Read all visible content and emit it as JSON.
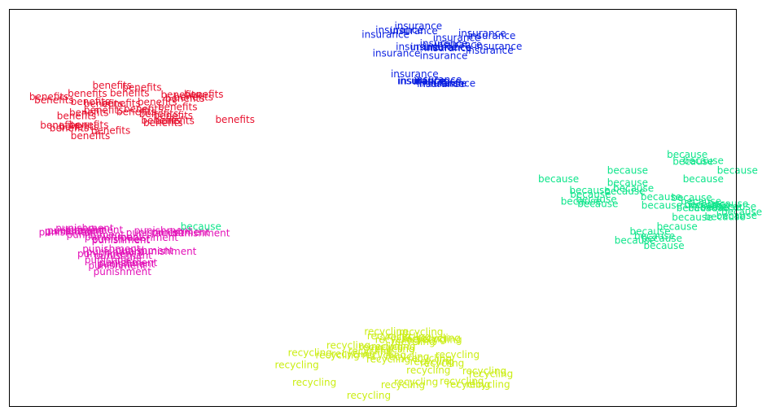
{
  "chart_data": {
    "type": "scatter",
    "title": "",
    "xlabel": "",
    "ylabel": "",
    "grid": false,
    "axes_ticks": false,
    "xlim": [
      0,
      1000
    ],
    "ylim": [
      0,
      1000
    ],
    "series": [
      {
        "name": "insurance",
        "color": "#0a1fe0",
        "points": [
          [
            563,
            957
          ],
          [
            557,
            945
          ],
          [
            518,
            935
          ],
          [
            537,
            947
          ],
          [
            651,
            939
          ],
          [
            664,
            932
          ],
          [
            616,
            927
          ],
          [
            585,
            904
          ],
          [
            565,
            905
          ],
          [
            533,
            888
          ],
          [
            618,
            910
          ],
          [
            598,
            913
          ],
          [
            604,
            902
          ],
          [
            603,
            904
          ],
          [
            661,
            895
          ],
          [
            598,
            882
          ],
          [
            558,
            836
          ],
          [
            589,
            818
          ],
          [
            568,
            819
          ],
          [
            597,
            812
          ],
          [
            590,
            822
          ],
          [
            567,
            819
          ],
          [
            609,
            812
          ],
          [
            594,
            811
          ],
          [
            673,
            906
          ]
        ]
      },
      {
        "name": "benefits",
        "color": "#e8122f",
        "points": [
          [
            55,
            779
          ],
          [
            62,
            771
          ],
          [
            108,
            787
          ],
          [
            166,
            788
          ],
          [
            142,
            807
          ],
          [
            183,
            802
          ],
          [
            236,
            784
          ],
          [
            254,
            778
          ],
          [
            268,
            785
          ],
          [
            232,
            753
          ],
          [
            204,
            765
          ],
          [
            130,
            761
          ],
          [
            154,
            762
          ],
          [
            112,
            766
          ],
          [
            242,
            775
          ],
          [
            130,
            745
          ],
          [
            175,
            741
          ],
          [
            110,
            739
          ],
          [
            93,
            731
          ],
          [
            110,
            708
          ],
          [
            96,
            703
          ],
          [
            70,
            707
          ],
          [
            83,
            700
          ],
          [
            212,
            713
          ],
          [
            226,
            732
          ],
          [
            185,
            748
          ],
          [
            206,
            736
          ],
          [
            209,
            719
          ],
          [
            228,
            718
          ],
          [
            311,
            721
          ],
          [
            112,
            680
          ],
          [
            140,
            694
          ]
        ]
      },
      {
        "name": "punishment",
        "color": "#e312b8",
        "points": [
          [
            104,
            448
          ],
          [
            93,
            442
          ],
          [
            89,
            441
          ],
          [
            81,
            438
          ],
          [
            117,
            444
          ],
          [
            119,
            431
          ],
          [
            144,
            425
          ],
          [
            154,
            418
          ],
          [
            193,
            424
          ],
          [
            154,
            420
          ],
          [
            212,
            442
          ],
          [
            201,
            436
          ],
          [
            236,
            438
          ],
          [
            264,
            435
          ],
          [
            141,
            395
          ],
          [
            134,
            383
          ],
          [
            144,
            368
          ],
          [
            157,
            379
          ],
          [
            146,
            388
          ],
          [
            186,
            391
          ],
          [
            218,
            389
          ],
          [
            161,
            358
          ],
          [
            149,
            353
          ],
          [
            156,
            338
          ],
          [
            164,
            361
          ]
        ]
      },
      {
        "name": "because",
        "color": "#0fe58b",
        "points": [
          [
            264,
            452
          ],
          [
            933,
            633
          ],
          [
            941,
            616
          ],
          [
            955,
            618
          ],
          [
            1002,
            593
          ],
          [
            955,
            572
          ],
          [
            851,
            593
          ],
          [
            756,
            572
          ],
          [
            847,
            541
          ],
          [
            799,
            543
          ],
          [
            851,
            562
          ],
          [
            859,
            548
          ],
          [
            897,
            527
          ],
          [
            939,
            525
          ],
          [
            800,
            533
          ],
          [
            808,
            521
          ],
          [
            810,
            509
          ],
          [
            787,
            515
          ],
          [
            898,
            505
          ],
          [
            952,
            515
          ],
          [
            946,
            499
          ],
          [
            963,
            506
          ],
          [
            989,
            509
          ],
          [
            962,
            499
          ],
          [
            979,
            501
          ],
          [
            1000,
            502
          ],
          [
            1008,
            489
          ],
          [
            985,
            476
          ],
          [
            1001,
            479
          ],
          [
            940,
            475
          ],
          [
            919,
            452
          ],
          [
            882,
            440
          ],
          [
            888,
            428
          ],
          [
            898,
            422
          ],
          [
            861,
            417
          ],
          [
            901,
            404
          ],
          [
            957,
            507
          ]
        ]
      },
      {
        "name": "recycling",
        "color": "#cbee14",
        "points": [
          [
            519,
            187
          ],
          [
            567,
            186
          ],
          [
            523,
            176
          ],
          [
            550,
            174
          ],
          [
            534,
            167
          ],
          [
            556,
            162
          ],
          [
            593,
            167
          ],
          [
            591,
            171
          ],
          [
            571,
            169
          ],
          [
            467,
            153
          ],
          [
            512,
            149
          ],
          [
            529,
            150
          ],
          [
            528,
            143
          ],
          [
            414,
            134
          ],
          [
            452,
            128
          ],
          [
            474,
            131
          ],
          [
            497,
            138
          ],
          [
            516,
            128
          ],
          [
            522,
            118
          ],
          [
            548,
            124
          ],
          [
            579,
            120
          ],
          [
            617,
            129
          ],
          [
            396,
            103
          ],
          [
            582,
            112
          ],
          [
            596,
            108
          ],
          [
            577,
            90
          ],
          [
            654,
            88
          ],
          [
            663,
            81
          ],
          [
            420,
            59
          ],
          [
            542,
            53
          ],
          [
            623,
            63
          ],
          [
            659,
            54
          ],
          [
            632,
            54
          ],
          [
            495,
            27
          ],
          [
            560,
            60
          ]
        ]
      }
    ]
  }
}
